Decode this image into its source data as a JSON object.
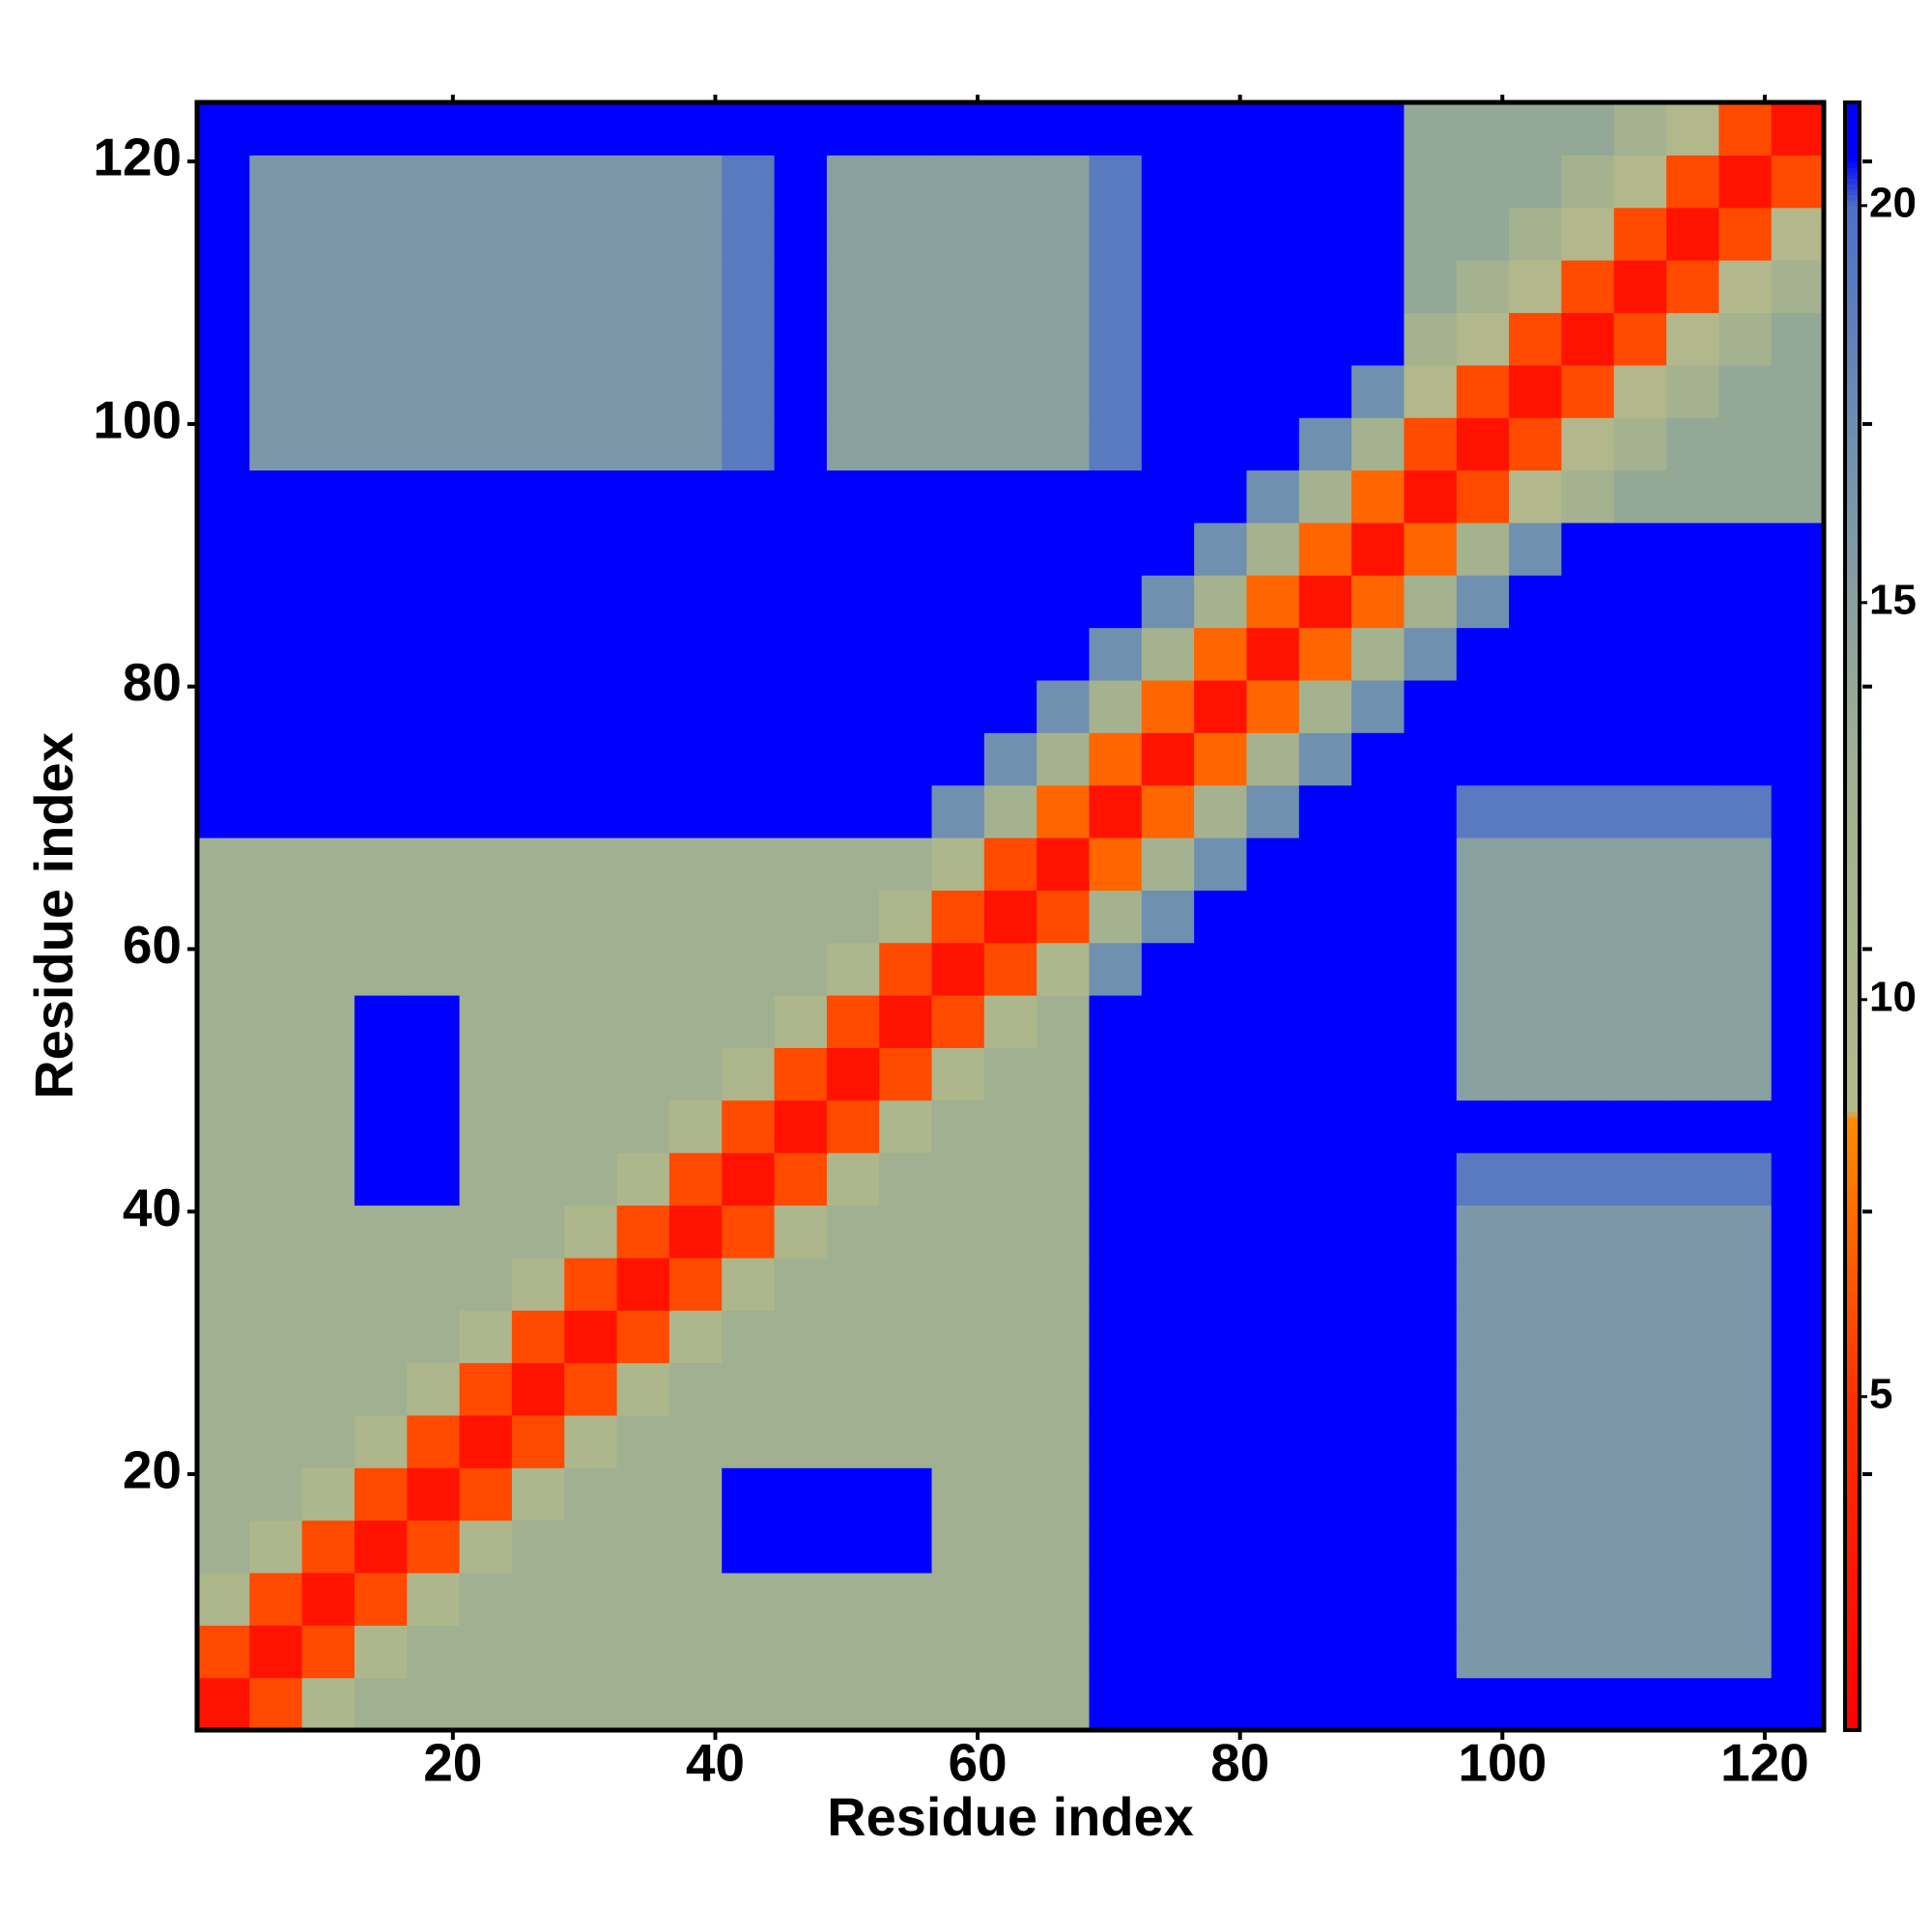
{
  "chart_data": {
    "type": "heatmap",
    "x_label": "Residue index",
    "y_label": "Residue index",
    "xbins": [
      0.5,
      4.5,
      8.5,
      12.5,
      16.5,
      20.5,
      24.5,
      28.5,
      32.5,
      36.5,
      40.5,
      44.5,
      48.5,
      52.5,
      56.5,
      60.5,
      64.5,
      68.5,
      72.5,
      76.5,
      80.5,
      84.5,
      88.5,
      92.5,
      96.5,
      100.5,
      104.5,
      108.5,
      112.5,
      116.5,
      120.5,
      124.5
    ],
    "ybins": [
      0.5,
      4.5,
      8.5,
      12.5,
      16.5,
      20.5,
      24.5,
      28.5,
      32.5,
      36.5,
      40.5,
      44.5,
      48.5,
      52.5,
      56.5,
      60.5,
      64.5,
      68.5,
      72.5,
      76.5,
      80.5,
      84.5,
      88.5,
      92.5,
      96.5,
      100.5,
      104.5,
      108.5,
      112.5,
      116.5,
      120.5,
      124.5
    ],
    "xlim": [
      0.5,
      124.5
    ],
    "ylim": [
      0.5,
      124.5
    ],
    "xticks": [
      20,
      40,
      60,
      80,
      100,
      120
    ],
    "yticks": [
      20,
      40,
      60,
      80,
      100,
      120
    ],
    "zlim": [
      0.8,
      21.3
    ],
    "zticks": [
      5,
      10,
      15,
      20
    ],
    "colorscale": [
      [
        0.8,
        "#ff0000"
      ],
      [
        5,
        "#ff3000"
      ],
      [
        8.5,
        "#ff8c00"
      ],
      [
        8.6,
        "#b4b98a"
      ],
      [
        13,
        "#a0b090"
      ],
      [
        17,
        "#7090b0"
      ],
      [
        20,
        "#4f6fc8"
      ],
      [
        20.6,
        "#0000ff"
      ],
      [
        21.3,
        "#0000ff"
      ]
    ],
    "z": [
      [
        2.5,
        6,
        10,
        13,
        13,
        13,
        13,
        13,
        13,
        13,
        13,
        13,
        13,
        13,
        13,
        13,
        13,
        21,
        21,
        21,
        21,
        21,
        21,
        21,
        21,
        21,
        21,
        21,
        21,
        21,
        21
      ],
      [
        6,
        2.5,
        6,
        10,
        13,
        13,
        13,
        13,
        13,
        13,
        13,
        13,
        13,
        13,
        13,
        13,
        13,
        21,
        21,
        21,
        21,
        21,
        21,
        21,
        16,
        16,
        16,
        16,
        16,
        16,
        21
      ],
      [
        10,
        6,
        2.5,
        6,
        10,
        13,
        13,
        13,
        13,
        13,
        13,
        13,
        13,
        13,
        13,
        13,
        13,
        21,
        21,
        21,
        21,
        21,
        21,
        21,
        16,
        16,
        16,
        16,
        16,
        16,
        21
      ],
      [
        13,
        10,
        6,
        2.5,
        6,
        10,
        13,
        13,
        13,
        13,
        21,
        21,
        21,
        21,
        13,
        13,
        13,
        21,
        21,
        21,
        21,
        21,
        21,
        21,
        16,
        16,
        16,
        16,
        16,
        16,
        21
      ],
      [
        13,
        13,
        10,
        6,
        2.5,
        6,
        10,
        13,
        13,
        13,
        21,
        21,
        21,
        21,
        13,
        13,
        13,
        21,
        21,
        21,
        21,
        21,
        21,
        21,
        16,
        16,
        16,
        16,
        16,
        16,
        21
      ],
      [
        13,
        13,
        13,
        10,
        6,
        2.5,
        6,
        10,
        13,
        13,
        13,
        13,
        13,
        13,
        13,
        13,
        13,
        21,
        21,
        21,
        21,
        21,
        21,
        21,
        16,
        16,
        16,
        16,
        16,
        16,
        21
      ],
      [
        13,
        13,
        13,
        13,
        10,
        6,
        2.5,
        6,
        10,
        13,
        13,
        13,
        13,
        13,
        13,
        13,
        13,
        21,
        21,
        21,
        21,
        21,
        21,
        21,
        16,
        16,
        16,
        16,
        16,
        16,
        21
      ],
      [
        13,
        13,
        13,
        13,
        13,
        10,
        6,
        2.5,
        6,
        10,
        13,
        13,
        13,
        13,
        13,
        13,
        13,
        21,
        21,
        21,
        21,
        21,
        21,
        21,
        16,
        16,
        16,
        16,
        16,
        16,
        21
      ],
      [
        13,
        13,
        13,
        13,
        13,
        13,
        10,
        6,
        2.5,
        6,
        10,
        13,
        13,
        13,
        13,
        13,
        13,
        21,
        21,
        21,
        21,
        21,
        21,
        21,
        16,
        16,
        16,
        16,
        16,
        16,
        21
      ],
      [
        13,
        13,
        13,
        13,
        13,
        13,
        13,
        10,
        6,
        2.5,
        6,
        10,
        13,
        13,
        13,
        13,
        13,
        21,
        21,
        21,
        21,
        21,
        21,
        21,
        16,
        16,
        16,
        16,
        16,
        16,
        21
      ],
      [
        13,
        13,
        13,
        21,
        21,
        13,
        13,
        13,
        10,
        6,
        2.5,
        6,
        10,
        13,
        13,
        13,
        13,
        21,
        21,
        21,
        21,
        21,
        21,
        21,
        19,
        19,
        19,
        19,
        19,
        19,
        21
      ],
      [
        13,
        13,
        13,
        21,
        21,
        13,
        13,
        13,
        13,
        10,
        6,
        2.5,
        6,
        10,
        13,
        13,
        13,
        21,
        21,
        21,
        21,
        21,
        21,
        21,
        21,
        21,
        21,
        21,
        21,
        21,
        21
      ],
      [
        13,
        13,
        13,
        21,
        21,
        13,
        13,
        13,
        13,
        13,
        10,
        6,
        2.5,
        6,
        10,
        13,
        13,
        21,
        21,
        21,
        21,
        21,
        21,
        21,
        15,
        15,
        15,
        15,
        15,
        15,
        21
      ],
      [
        13,
        13,
        13,
        21,
        21,
        13,
        13,
        13,
        13,
        13,
        13,
        10,
        6,
        2.5,
        6,
        10,
        13,
        21,
        21,
        21,
        21,
        21,
        21,
        21,
        15,
        15,
        15,
        15,
        15,
        15,
        21
      ],
      [
        13,
        13,
        13,
        13,
        13,
        13,
        13,
        13,
        13,
        13,
        13,
        13,
        10,
        6,
        2.5,
        6,
        10,
        17,
        21,
        21,
        21,
        21,
        21,
        21,
        15,
        15,
        15,
        15,
        15,
        15,
        21
      ],
      [
        13,
        13,
        13,
        13,
        13,
        13,
        13,
        13,
        13,
        13,
        13,
        13,
        13,
        10,
        6,
        2.5,
        6,
        12,
        17,
        21,
        21,
        21,
        21,
        21,
        15,
        15,
        15,
        15,
        15,
        15,
        21
      ],
      [
        13,
        13,
        13,
        13,
        13,
        13,
        13,
        13,
        13,
        13,
        13,
        13,
        13,
        13,
        10,
        6,
        2.5,
        7,
        12,
        17,
        21,
        21,
        21,
        21,
        15,
        15,
        15,
        15,
        15,
        15,
        21
      ],
      [
        21,
        21,
        21,
        21,
        21,
        21,
        21,
        21,
        21,
        21,
        21,
        21,
        21,
        21,
        17,
        12,
        7,
        2.5,
        7,
        12,
        17,
        21,
        21,
        21,
        19,
        19,
        19,
        19,
        19,
        19,
        21
      ],
      [
        21,
        21,
        21,
        21,
        21,
        21,
        21,
        21,
        21,
        21,
        21,
        21,
        21,
        21,
        21,
        17,
        12,
        7,
        2.5,
        7,
        12,
        17,
        21,
        21,
        21,
        21,
        21,
        21,
        21,
        21,
        21
      ],
      [
        21,
        21,
        21,
        21,
        21,
        21,
        21,
        21,
        21,
        21,
        21,
        21,
        21,
        21,
        21,
        21,
        17,
        12,
        7,
        2.5,
        7,
        12,
        17,
        21,
        21,
        21,
        21,
        21,
        21,
        21,
        21
      ],
      [
        21,
        21,
        21,
        21,
        21,
        21,
        21,
        21,
        21,
        21,
        21,
        21,
        21,
        21,
        21,
        21,
        21,
        17,
        12,
        7,
        2.5,
        7,
        12,
        17,
        21,
        21,
        21,
        21,
        21,
        21,
        21
      ],
      [
        21,
        21,
        21,
        21,
        21,
        21,
        21,
        21,
        21,
        21,
        21,
        21,
        21,
        21,
        21,
        21,
        21,
        21,
        17,
        12,
        7,
        2.5,
        7,
        12,
        17,
        21,
        21,
        21,
        21,
        21,
        21
      ],
      [
        21,
        21,
        21,
        21,
        21,
        21,
        21,
        21,
        21,
        21,
        21,
        21,
        21,
        21,
        21,
        21,
        21,
        21,
        21,
        17,
        12,
        7,
        2.5,
        7,
        12,
        17,
        21,
        21,
        21,
        21,
        21
      ],
      [
        21,
        21,
        21,
        21,
        21,
        21,
        21,
        21,
        21,
        21,
        21,
        21,
        21,
        21,
        21,
        21,
        21,
        21,
        21,
        21,
        17,
        12,
        7,
        2.5,
        6,
        9,
        12,
        14,
        14,
        14,
        14
      ],
      [
        21,
        16,
        16,
        16,
        16,
        16,
        16,
        16,
        16,
        16,
        19,
        21,
        15,
        15,
        15,
        15,
        15,
        19,
        21,
        21,
        21,
        17,
        12,
        6,
        2.5,
        6,
        9,
        12,
        14,
        14,
        14
      ],
      [
        21,
        16,
        16,
        16,
        16,
        16,
        16,
        16,
        16,
        16,
        19,
        21,
        15,
        15,
        15,
        15,
        15,
        19,
        21,
        21,
        21,
        21,
        17,
        9,
        6,
        2.5,
        6,
        9,
        12,
        14,
        14
      ],
      [
        21,
        16,
        16,
        16,
        16,
        16,
        16,
        16,
        16,
        16,
        19,
        21,
        15,
        15,
        15,
        15,
        15,
        19,
        21,
        21,
        21,
        21,
        21,
        12,
        9,
        6,
        2.5,
        6,
        9,
        12,
        14
      ],
      [
        21,
        16,
        16,
        16,
        16,
        16,
        16,
        16,
        16,
        16,
        19,
        21,
        15,
        15,
        15,
        15,
        15,
        19,
        21,
        21,
        21,
        21,
        21,
        14,
        12,
        9,
        6,
        2.5,
        6,
        9,
        12
      ],
      [
        21,
        16,
        16,
        16,
        16,
        16,
        16,
        16,
        16,
        16,
        19,
        21,
        15,
        15,
        15,
        15,
        15,
        19,
        21,
        21,
        21,
        21,
        21,
        14,
        14,
        12,
        9,
        6,
        2.5,
        6,
        9
      ],
      [
        21,
        16,
        16,
        16,
        16,
        16,
        16,
        16,
        16,
        16,
        19,
        21,
        15,
        15,
        15,
        15,
        15,
        19,
        21,
        21,
        21,
        21,
        21,
        14,
        14,
        14,
        12,
        9,
        6,
        2.5,
        6
      ],
      [
        21,
        21,
        21,
        21,
        21,
        21,
        21,
        21,
        21,
        21,
        21,
        21,
        21,
        21,
        21,
        21,
        21,
        21,
        21,
        21,
        21,
        21,
        21,
        14,
        14,
        14,
        14,
        12,
        9,
        6,
        2.5
      ]
    ]
  }
}
